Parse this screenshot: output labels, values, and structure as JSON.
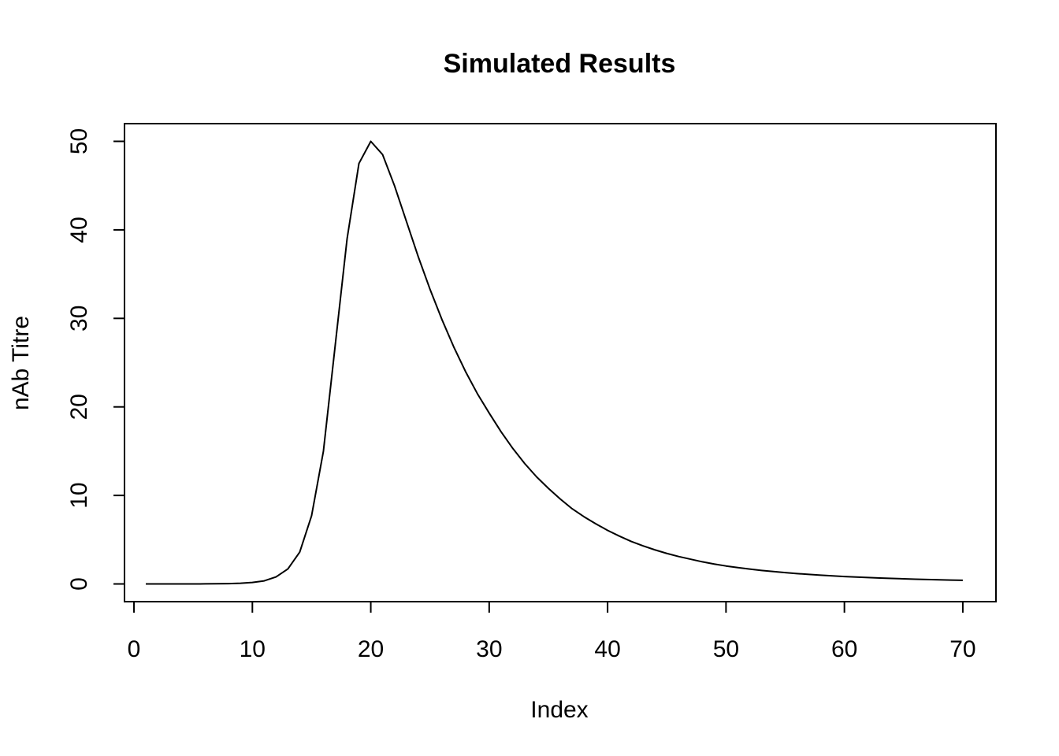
{
  "chart_data": {
    "type": "line",
    "title": "Simulated Results",
    "xlabel": "Index",
    "ylabel": "nAb Titre",
    "xlim": [
      -0.8,
      72.8
    ],
    "ylim": [
      -2,
      52
    ],
    "x_ticks": [
      0,
      10,
      20,
      30,
      40,
      50,
      60,
      70
    ],
    "y_ticks": [
      0,
      10,
      20,
      30,
      40,
      50
    ],
    "x_tick_labels": [
      "0",
      "10",
      "20",
      "30",
      "40",
      "50",
      "60",
      "70"
    ],
    "y_tick_labels": [
      "0",
      "10",
      "20",
      "30",
      "40",
      "50"
    ],
    "grid": false,
    "legend": "none",
    "line_color": "#000000",
    "series": [
      {
        "x": [
          1,
          2,
          3,
          4,
          5,
          6,
          7,
          8,
          9,
          10,
          11,
          12,
          13,
          14,
          15,
          16,
          17,
          18,
          19,
          20,
          21,
          22,
          23,
          24,
          25,
          26,
          27,
          28,
          29,
          30,
          31,
          32,
          33,
          34,
          35,
          36,
          37,
          38,
          39,
          40,
          41,
          42,
          43,
          44,
          45,
          46,
          47,
          48,
          49,
          50,
          51,
          52,
          53,
          54,
          55,
          56,
          57,
          58,
          59,
          60,
          61,
          62,
          63,
          64,
          65,
          66,
          67,
          68,
          69,
          70
        ],
        "values": [
          0,
          0,
          0,
          0,
          0,
          0.01,
          0.02,
          0.04,
          0.08,
          0.17,
          0.35,
          0.8,
          1.7,
          3.6,
          7.7,
          15,
          27,
          39,
          47.5,
          50,
          48.5,
          45,
          41,
          37,
          33.3,
          29.9,
          26.8,
          24,
          21.5,
          19.3,
          17.2,
          15.3,
          13.6,
          12.1,
          10.8,
          9.6,
          8.5,
          7.6,
          6.8,
          6.05,
          5.4,
          4.8,
          4.3,
          3.85,
          3.45,
          3.1,
          2.8,
          2.5,
          2.25,
          2.03,
          1.85,
          1.68,
          1.53,
          1.4,
          1.28,
          1.17,
          1.08,
          0.99,
          0.91,
          0.84,
          0.78,
          0.72,
          0.67,
          0.62,
          0.58,
          0.54,
          0.5,
          0.47,
          0.44,
          0.41
        ]
      }
    ]
  }
}
